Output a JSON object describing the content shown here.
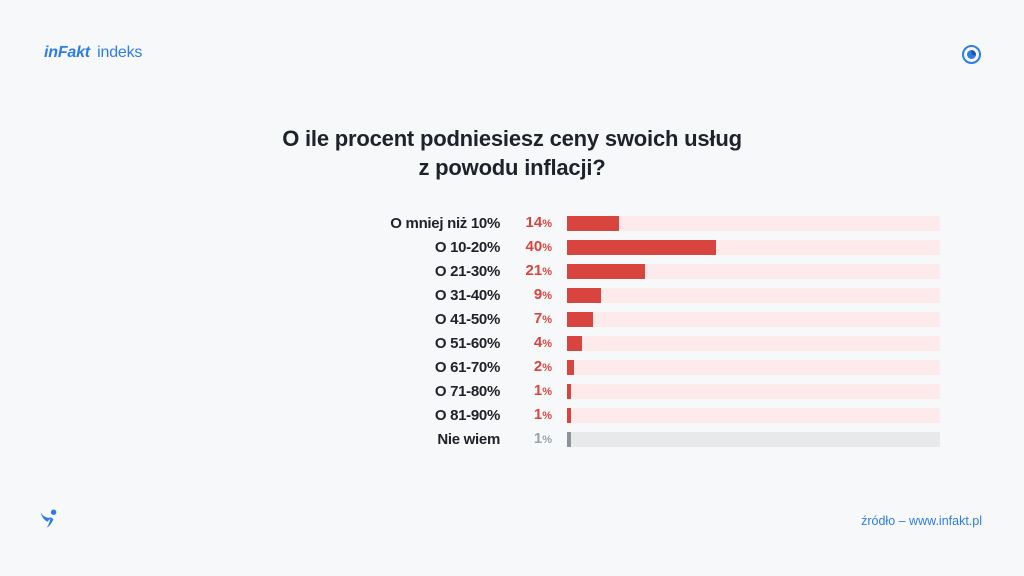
{
  "header": {
    "logo_primary": "inFakt",
    "logo_secondary": "indeks"
  },
  "title": {
    "line1": "O ile procent podniesiesz ceny swoich usług",
    "line2": "z powodu inflacji?"
  },
  "chart_data": {
    "type": "bar",
    "orientation": "horizontal",
    "title": "O ile procent podniesiesz ceny swoich usług z powodu inflacji?",
    "categories": [
      "O mniej niż 10%",
      "O 10-20%",
      "O 21-30%",
      "O 31-40%",
      "O 41-50%",
      "O 51-60%",
      "O 61-70%",
      "O 71-80%",
      "O 81-90%",
      "Nie wiem"
    ],
    "values": [
      14,
      40,
      21,
      9,
      7,
      4,
      2,
      1,
      1,
      1
    ],
    "unit": "%",
    "xlim": [
      0,
      100
    ],
    "grid": false,
    "legend": false,
    "muted_category": "Nie wiem",
    "colors": {
      "bar_fill": "#d8453e",
      "bar_track": "#fdeaea",
      "muted_fill": "#8d929b",
      "muted_track": "#e8e9eb",
      "value_text": "#d8453e",
      "muted_value_text": "#9aa2ab"
    }
  },
  "footer": {
    "source": "źródło – www.infakt.pl"
  },
  "colors": {
    "accent_blue": "#2e7ce9",
    "text_dark": "#1e222a",
    "background": "#f7f8fa"
  }
}
